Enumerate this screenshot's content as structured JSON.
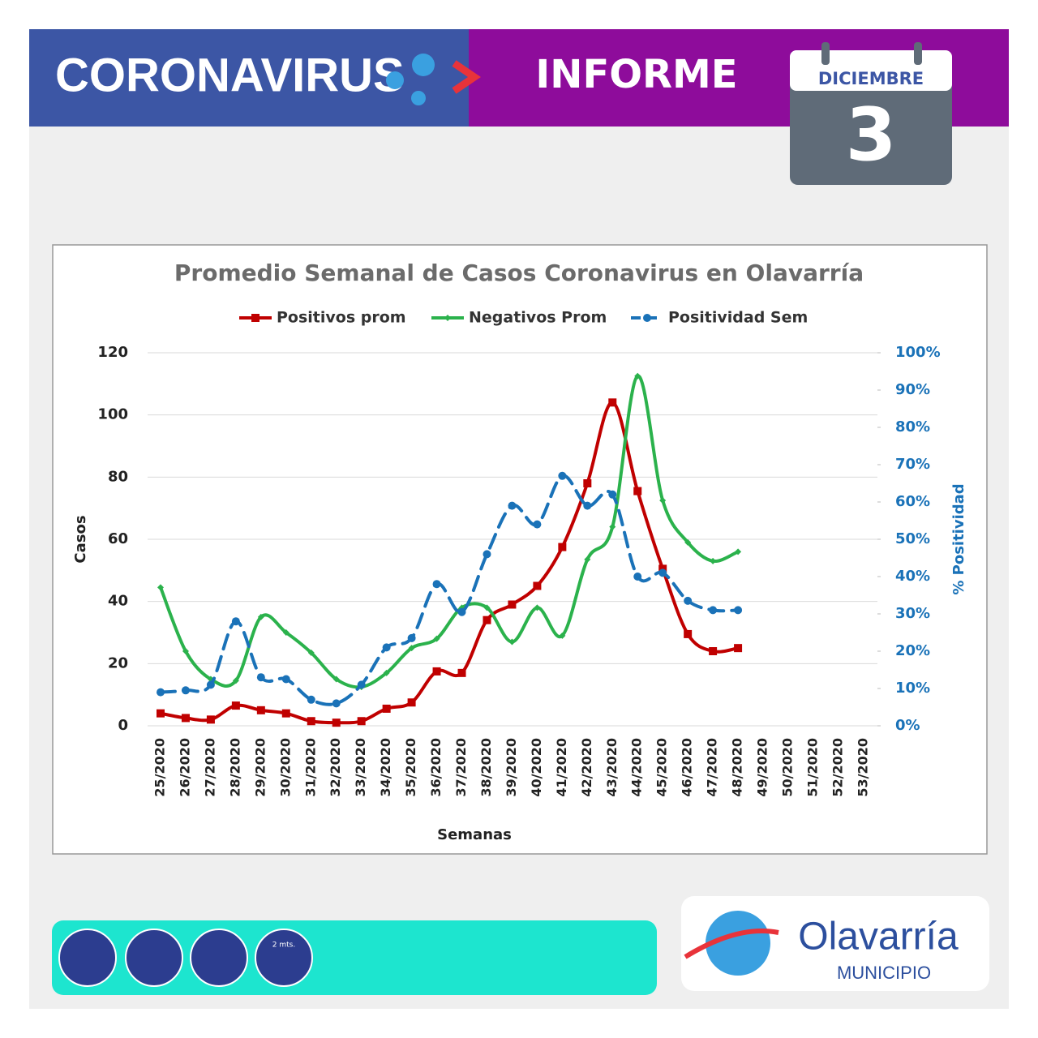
{
  "header": {
    "title": "CORONAVIRUS",
    "subtitle": "INFORME",
    "month": "DICIEMBRE",
    "day": "3"
  },
  "chart_data": {
    "type": "line",
    "title": "Promedio Semanal de Casos Coronavirus en Olavarría",
    "x_label": "Semanas",
    "y_label": "Casos",
    "y2_label": "% Positividad",
    "categories": [
      "25/2020",
      "26/2020",
      "27/2020",
      "28/2020",
      "29/2020",
      "30/2020",
      "31/2020",
      "32/2020",
      "33/2020",
      "34/2020",
      "35/2020",
      "36/2020",
      "37/2020",
      "38/2020",
      "39/2020",
      "40/2020",
      "41/2020",
      "42/2020",
      "43/2020",
      "44/2020",
      "45/2020",
      "46/2020",
      "47/2020",
      "48/2020",
      "49/2020",
      "50/2020",
      "51/2020",
      "52/2020",
      "53/2020"
    ],
    "series": [
      {
        "name": "Positivos prom",
        "color": "#c00000",
        "marker": "square",
        "style": "solid",
        "values": [
          4,
          2.5,
          2,
          6.5,
          5,
          4,
          1.5,
          1,
          1.5,
          5.5,
          7.5,
          17.5,
          17,
          34,
          39,
          45,
          57.5,
          78,
          104,
          75.5,
          50.5,
          29.5,
          24,
          25,
          null,
          null,
          null,
          null,
          null
        ]
      },
      {
        "name": "Negativos Prom",
        "color": "#2bb24c",
        "marker": "diamond",
        "style": "solid",
        "values": [
          44.5,
          24,
          15,
          14.5,
          35,
          30,
          23.5,
          15,
          12.5,
          17,
          25,
          28,
          38,
          38,
          27,
          38,
          29,
          53.5,
          64,
          112.5,
          72.5,
          59,
          53,
          56,
          null,
          null,
          null,
          null,
          null
        ]
      },
      {
        "name": "Positividad Sem",
        "color": "#1a72b8",
        "marker": "circle",
        "style": "dashed",
        "axis": "y2",
        "values": [
          9,
          9.5,
          11,
          28,
          13,
          12.5,
          7,
          6,
          11,
          21,
          23.5,
          38,
          30.5,
          46,
          59,
          54,
          67,
          59,
          62,
          40,
          41,
          33.5,
          31,
          31,
          null,
          null,
          null,
          null,
          null
        ]
      }
    ],
    "ylim": [
      0,
      120
    ],
    "yticks": [
      0,
      20,
      40,
      60,
      80,
      100,
      120
    ],
    "y2lim": [
      0,
      100
    ],
    "y2ticks": [
      {
        "value": 0,
        "label": "0%"
      },
      {
        "value": 10,
        "label": "10%"
      },
      {
        "value": 20,
        "label": "20%"
      },
      {
        "value": 30,
        "label": "30%"
      },
      {
        "value": 40,
        "label": "40%"
      },
      {
        "value": 50,
        "label": "50%"
      },
      {
        "value": 60,
        "label": "60%"
      },
      {
        "value": 70,
        "label": "70%"
      },
      {
        "value": 80,
        "label": "80%"
      },
      {
        "value": 90,
        "label": "90%"
      },
      {
        "value": 100,
        "label": "100%"
      }
    ],
    "grid": true,
    "legend": "top"
  },
  "footer": {
    "brand": "Olavarría",
    "sub": "MUNICIPIO",
    "badge": "2 mts."
  }
}
